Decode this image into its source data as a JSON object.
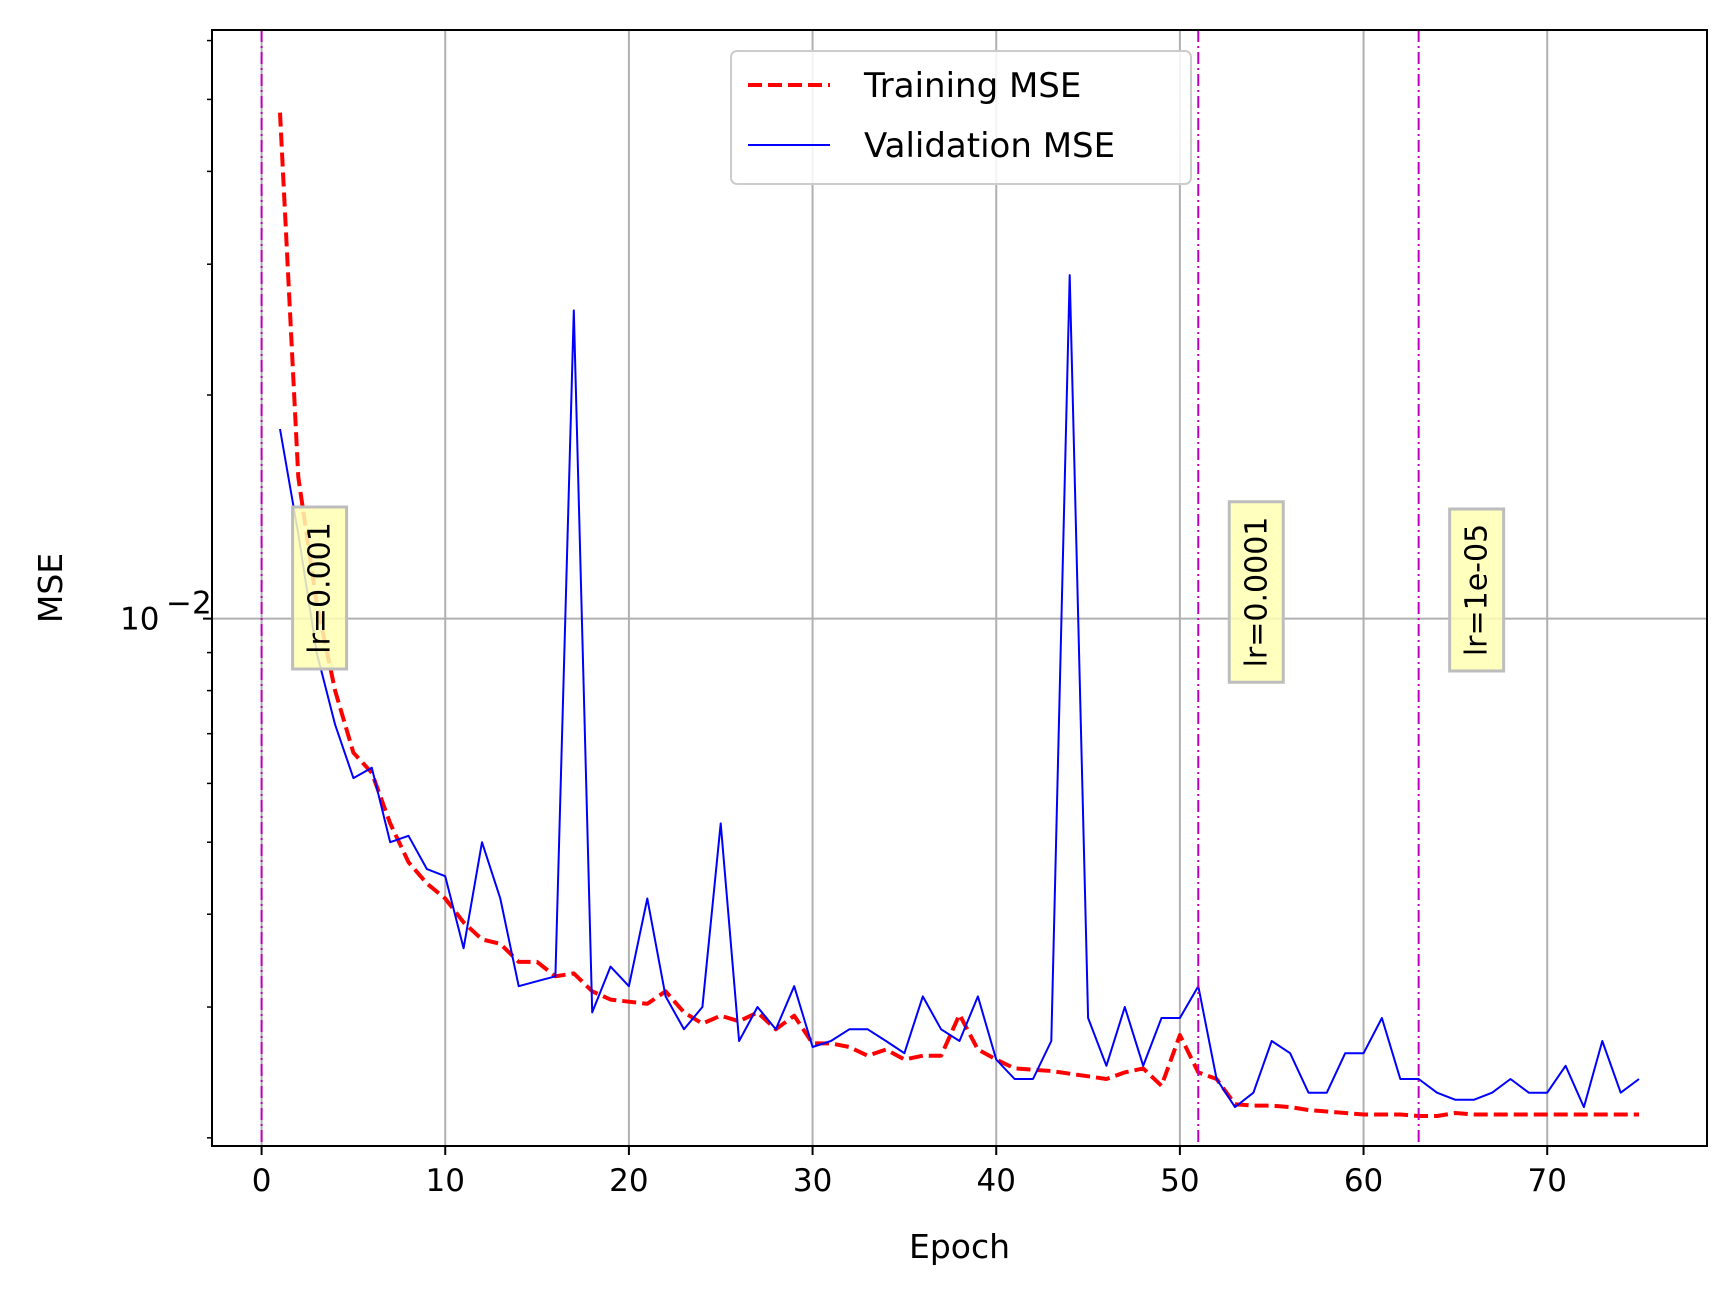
{
  "chart_data": {
    "type": "line",
    "xlabel": "Epoch",
    "ylabel": "MSE",
    "xlim": [
      -2.7,
      78.7
    ],
    "ylim": [
      0.00195,
      0.062
    ],
    "yscale": "log",
    "grid": true,
    "legend_position": "top-center",
    "xticks": [
      0,
      10,
      20,
      30,
      40,
      50,
      60,
      70
    ],
    "xtick_labels": [
      "0",
      "10",
      "20",
      "30",
      "40",
      "50",
      "60",
      "70"
    ],
    "yticks": [
      0.01
    ],
    "ytick_labels": [
      "10",
      "−2"
    ],
    "series": [
      {
        "name": "Training MSE",
        "color": "#ff0000",
        "style": "dashed",
        "x": [
          1,
          2,
          3,
          4,
          5,
          6,
          7,
          8,
          9,
          10,
          11,
          12,
          13,
          14,
          15,
          16,
          17,
          18,
          19,
          20,
          21,
          22,
          23,
          24,
          25,
          26,
          27,
          28,
          29,
          30,
          31,
          32,
          33,
          34,
          35,
          36,
          37,
          38,
          39,
          40,
          41,
          42,
          43,
          44,
          45,
          46,
          47,
          48,
          49,
          50,
          51,
          52,
          53,
          54,
          55,
          56,
          57,
          58,
          59,
          60,
          61,
          62,
          63,
          64,
          65,
          66,
          67,
          68,
          69,
          70,
          71,
          72,
          73,
          74,
          75
        ],
        "values": [
          0.048,
          0.0155,
          0.0105,
          0.008,
          0.0066,
          0.0062,
          0.0053,
          0.0047,
          0.0044,
          0.0042,
          0.0039,
          0.0037,
          0.00365,
          0.00345,
          0.00345,
          0.0033,
          0.00333,
          0.00315,
          0.00307,
          0.00305,
          0.00303,
          0.00315,
          0.00295,
          0.00285,
          0.00292,
          0.00287,
          0.00295,
          0.0028,
          0.00292,
          0.00268,
          0.00268,
          0.00265,
          0.00258,
          0.00263,
          0.00255,
          0.00258,
          0.00258,
          0.00293,
          0.00263,
          0.00255,
          0.00248,
          0.00247,
          0.00246,
          0.00244,
          0.00242,
          0.0024,
          0.00245,
          0.00248,
          0.00235,
          0.00275,
          0.00245,
          0.0024,
          0.00222,
          0.00221,
          0.00221,
          0.0022,
          0.00218,
          0.00217,
          0.00216,
          0.00215,
          0.00215,
          0.00215,
          0.00214,
          0.00214,
          0.00216,
          0.00215,
          0.00215,
          0.00215,
          0.00215,
          0.00215,
          0.00215,
          0.00215,
          0.00215,
          0.00215,
          0.00215
        ]
      },
      {
        "name": "Validation MSE",
        "color": "#0000ff",
        "style": "solid",
        "x": [
          1,
          2,
          3,
          4,
          5,
          6,
          7,
          8,
          9,
          10,
          11,
          12,
          13,
          14,
          15,
          16,
          17,
          18,
          19,
          20,
          21,
          22,
          23,
          24,
          25,
          26,
          27,
          28,
          29,
          30,
          31,
          32,
          33,
          34,
          35,
          36,
          37,
          38,
          39,
          40,
          41,
          42,
          43,
          44,
          45,
          46,
          47,
          48,
          49,
          50,
          51,
          52,
          53,
          54,
          55,
          56,
          57,
          58,
          59,
          60,
          61,
          62,
          63,
          64,
          65,
          66,
          67,
          68,
          69,
          70,
          71,
          72,
          73,
          74,
          75
        ],
        "values": [
          0.018,
          0.013,
          0.009,
          0.0072,
          0.0061,
          0.0063,
          0.005,
          0.0051,
          0.0046,
          0.0045,
          0.0036,
          0.005,
          0.0042,
          0.0032,
          0.00325,
          0.0033,
          0.026,
          0.00295,
          0.0034,
          0.0032,
          0.0042,
          0.0031,
          0.0028,
          0.003,
          0.0053,
          0.0027,
          0.003,
          0.0028,
          0.0032,
          0.00265,
          0.0027,
          0.0028,
          0.0028,
          0.0027,
          0.0026,
          0.0031,
          0.0028,
          0.0027,
          0.0031,
          0.00255,
          0.0024,
          0.0024,
          0.0027,
          0.029,
          0.0029,
          0.0025,
          0.003,
          0.0025,
          0.0029,
          0.0029,
          0.0032,
          0.0024,
          0.0022,
          0.0023,
          0.0027,
          0.0026,
          0.0023,
          0.0023,
          0.0026,
          0.0026,
          0.0029,
          0.0024,
          0.0024,
          0.0023,
          0.00225,
          0.00225,
          0.0023,
          0.0024,
          0.0023,
          0.0023,
          0.0025,
          0.0022,
          0.0027,
          0.0023,
          0.0024
        ]
      }
    ],
    "vlines": [
      {
        "x": 0,
        "color": "#bf00bf",
        "label": "lr=0.001"
      },
      {
        "x": 51,
        "color": "#bf00bf",
        "label": "lr=0.0001"
      },
      {
        "x": 63,
        "color": "#bf00bf",
        "label": "lr=1e-05"
      }
    ]
  }
}
